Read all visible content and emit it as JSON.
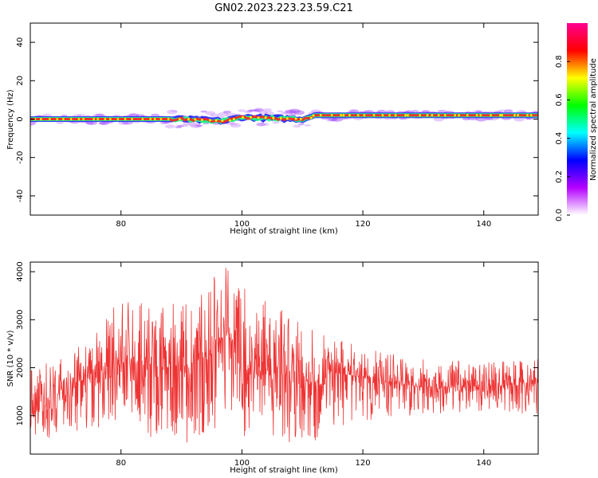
{
  "figure_title": "GN02.2023.223.23.59.C21",
  "chart_data": [
    {
      "type": "heatmap",
      "xlabel": "Height of straight line (km)",
      "ylabel": "Frequency (Hz)",
      "xlim": [
        65,
        149
      ],
      "ylim": [
        -50,
        50
      ],
      "xticks": [
        80,
        100,
        120,
        140
      ],
      "yticks": [
        -40,
        -20,
        0,
        20,
        40
      ],
      "colorbar": {
        "label": "Normalized spectral amplitude",
        "range": [
          0,
          1
        ],
        "ticks": [
          "0.0",
          "0.2",
          "0.4",
          "0.6",
          "0.8"
        ],
        "colormap": [
          "#ffffff",
          "#b400ff",
          "#0000ff",
          "#00ffff",
          "#00ff00",
          "#ffff00",
          "#ff0000",
          "#ff0090"
        ]
      },
      "trace": {
        "description": "narrow band near 0 Hz, shifting to about 2 Hz above 110 km",
        "x": [
          65,
          80,
          90,
          97,
          100,
          110,
          112,
          120,
          130,
          149
        ],
        "frequency_hz": [
          0,
          0,
          0,
          -1,
          1,
          0,
          2,
          2,
          2,
          2
        ]
      }
    },
    {
      "type": "line",
      "xlabel": "Height of straight line (km)",
      "ylabel": "SNR (10 * v/v)",
      "xlim": [
        65,
        149
      ],
      "ylim": [
        200,
        4200
      ],
      "xticks": [
        80,
        100,
        120,
        140
      ],
      "yticks": [
        1000,
        2000,
        3000,
        4000
      ],
      "color": "#ee3333",
      "envelope": {
        "x": [
          65,
          70,
          75,
          80,
          85,
          90,
          95,
          97.5,
          100,
          105,
          110,
          115,
          120,
          130,
          140,
          149
        ],
        "mean": [
          1000,
          1500,
          1800,
          2200,
          2000,
          2000,
          2300,
          2800,
          1900,
          2000,
          1600,
          1900,
          1800,
          1600,
          1600,
          1700
        ],
        "max": [
          2000,
          2200,
          2600,
          3500,
          3300,
          3400,
          3900,
          4200,
          3700,
          3300,
          3000,
          2700,
          2400,
          2200,
          2100,
          2200
        ],
        "min": [
          400,
          600,
          700,
          900,
          500,
          300,
          400,
          800,
          500,
          600,
          300,
          700,
          900,
          1000,
          1100,
          1000
        ]
      }
    }
  ]
}
